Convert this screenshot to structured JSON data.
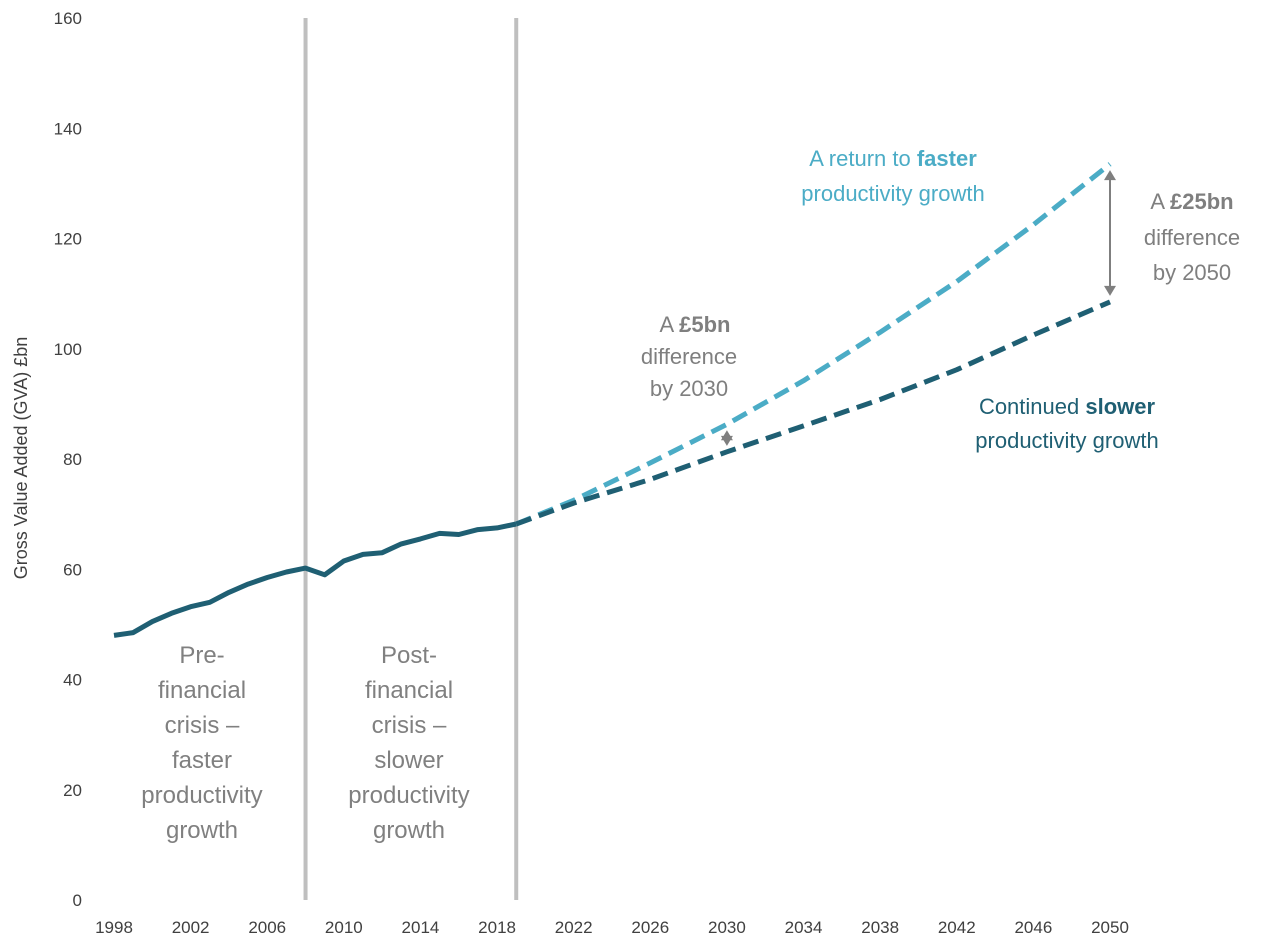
{
  "chart_data": {
    "type": "line",
    "ylabel": "Gross Value Added (GVA) £bn",
    "xlabel": "",
    "ylim": [
      0,
      160
    ],
    "xlim": [
      1998,
      2050
    ],
    "y_ticks": [
      "0",
      "20",
      "40",
      "60",
      "80",
      "100",
      "120",
      "140",
      "160"
    ],
    "x_ticks": [
      "1998",
      "2002",
      "2006",
      "2010",
      "2014",
      "2018",
      "2022",
      "2026",
      "2030",
      "2034",
      "2038",
      "2042",
      "2046",
      "2050"
    ],
    "grid": false,
    "colors": {
      "historic": "#1f5f73",
      "slower": "#1f5f73",
      "faster": "#4bacc6",
      "divider": "#bfbfbf",
      "arrow": "#7f7f7f"
    },
    "dividers": [
      2008,
      2019
    ],
    "series": [
      {
        "key": "historic",
        "style": "solid",
        "x": [
          1998,
          1999,
          2000,
          2001,
          2002,
          2003,
          2004,
          2005,
          2006,
          2007,
          2008,
          2009,
          2010,
          2011,
          2012,
          2013,
          2014,
          2015,
          2016,
          2017,
          2018,
          2019
        ],
        "values": [
          48,
          48.5,
          50.5,
          52,
          53.2,
          54,
          55.8,
          57.3,
          58.5,
          59.5,
          60.2,
          59,
          61.5,
          62.7,
          63,
          64.6,
          65.5,
          66.5,
          66.3,
          67.2,
          67.5,
          68.2
        ]
      },
      {
        "key": "faster",
        "style": "dashed",
        "x": [
          2019,
          2022,
          2026,
          2030,
          2034,
          2038,
          2042,
          2046,
          2050
        ],
        "values": [
          68.2,
          72.5,
          79.3,
          86.3,
          94.2,
          103,
          112.2,
          122.5,
          133.5
        ]
      },
      {
        "key": "slower",
        "style": "dashed",
        "x": [
          2019,
          2022,
          2026,
          2030,
          2034,
          2038,
          2042,
          2046,
          2050
        ],
        "values": [
          68.2,
          72,
          76.3,
          81.3,
          86,
          90.8,
          96.2,
          102.5,
          108.5
        ]
      }
    ],
    "periods": [
      {
        "lines": [
          "Pre-",
          "financial",
          "crisis –",
          "faster",
          "productivity",
          "growth"
        ]
      },
      {
        "lines": [
          "Post-",
          "financial",
          "crisis –",
          "slower",
          "productivity",
          "growth"
        ]
      }
    ],
    "annotations": {
      "five_bn": {
        "line1_pre": "A ",
        "line1_bold": "£5bn",
        "line2": "difference",
        "line3": "by 2030"
      },
      "twentyfive_bn": {
        "line1_pre": "A ",
        "line1_bold": "£25bn",
        "line2": "difference",
        "line3": "by 2050"
      },
      "faster_label": {
        "line1_pre": "A return to ",
        "line1_bold": "faster",
        "line2": "productivity growth"
      },
      "slower_label": {
        "line1_pre": "Continued ",
        "line1_bold": "slower",
        "line2": "productivity growth"
      }
    }
  }
}
